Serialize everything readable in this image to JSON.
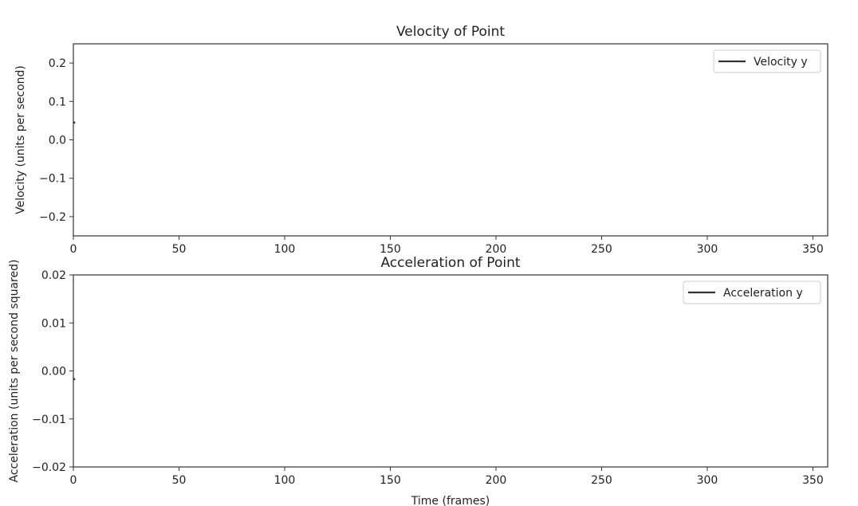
{
  "chart_data": [
    {
      "type": "line",
      "title": "Velocity of Point",
      "xlabel": "",
      "ylabel": "Velocity (units per second)",
      "xlim": [
        0,
        357
      ],
      "ylim": [
        -0.25,
        0.25
      ],
      "xticks": [
        0,
        50,
        100,
        150,
        200,
        250,
        300,
        350
      ],
      "yticks": [
        0.2,
        0.1,
        0.0,
        -0.1,
        -0.2
      ],
      "xtick_labels": [
        "0",
        "50",
        "100",
        "150",
        "200",
        "250",
        "300",
        "350"
      ],
      "ytick_labels": [
        "0.2",
        "0.1",
        "0.0",
        "−0.1",
        "−0.2"
      ],
      "legend": "top-right",
      "grid": false,
      "series": [
        {
          "name": "Velocity y",
          "color": "#333333",
          "x": [
            0
          ],
          "y": [
            0.045
          ]
        }
      ]
    },
    {
      "type": "line",
      "title": "Acceleration of Point",
      "xlabel": "Time (frames)",
      "ylabel": "Acceleration (units per second squared)",
      "xlim": [
        0,
        357
      ],
      "ylim": [
        -0.02,
        0.02
      ],
      "xticks": [
        0,
        50,
        100,
        150,
        200,
        250,
        300,
        350
      ],
      "yticks": [
        0.02,
        0.01,
        0.0,
        -0.01,
        -0.02
      ],
      "xtick_labels": [
        "0",
        "50",
        "100",
        "150",
        "200",
        "250",
        "300",
        "350"
      ],
      "ytick_labels": [
        "0.02",
        "0.01",
        "0.00",
        "−0.01",
        "−0.02"
      ],
      "legend": "top-right",
      "grid": false,
      "series": [
        {
          "name": "Acceleration y",
          "color": "#333333",
          "x": [
            0
          ],
          "y": [
            -0.0017
          ]
        }
      ]
    }
  ]
}
